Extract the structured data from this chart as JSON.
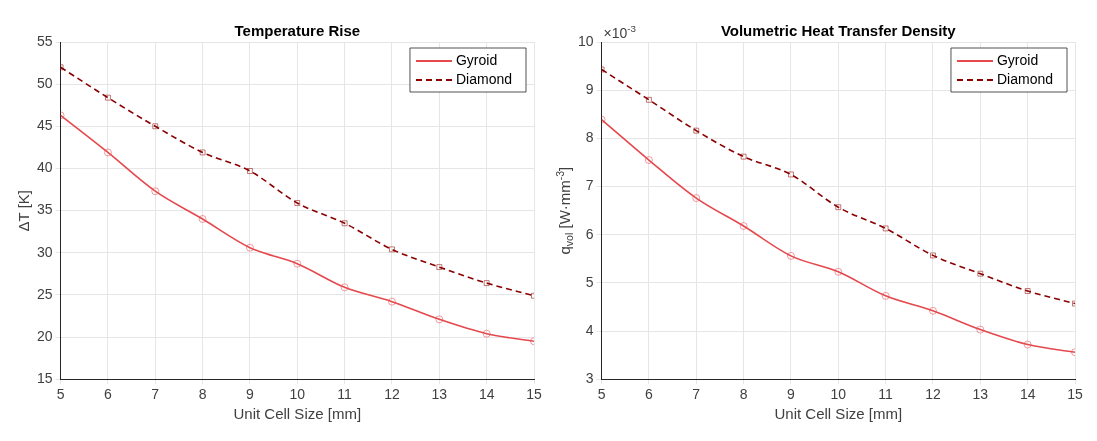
{
  "chart_data": [
    {
      "type": "line",
      "title": "Temperature Rise",
      "xlabel": "Unit Cell Size [mm]",
      "ylabel": "ΔT [K]",
      "x": [
        5,
        6,
        7,
        8,
        9,
        10,
        11,
        12,
        13,
        14,
        15
      ],
      "series": [
        {
          "name": "Gyroid",
          "color": "#e5484d",
          "marker": "circle",
          "line_style": "solid",
          "values": [
            46.3,
            41.9,
            37.3,
            34.0,
            30.6,
            28.7,
            25.9,
            24.2,
            22.1,
            20.4,
            19.5
          ]
        },
        {
          "name": "Diamond",
          "color": "#8b0000",
          "marker": "square",
          "line_style": "dashed",
          "values": [
            52.0,
            48.4,
            45.0,
            41.9,
            39.7,
            35.9,
            33.5,
            30.4,
            28.3,
            26.4,
            24.9
          ]
        }
      ],
      "xlim": [
        5,
        15
      ],
      "xticks": [
        5,
        6,
        7,
        8,
        9,
        10,
        11,
        12,
        13,
        14,
        15
      ],
      "ylim": [
        15,
        55
      ],
      "yticks": [
        15,
        20,
        25,
        30,
        35,
        40,
        45,
        50,
        55
      ],
      "grid": true,
      "legend": "top right"
    },
    {
      "type": "line",
      "title": "Volumetric Heat Transfer Density",
      "xlabel": "Unit Cell Size [mm]",
      "ylabel": "q$_{vol}$ [W·mm$^{-3}$]",
      "annotations": [
        "×10$^{-3}$"
      ],
      "x": [
        5,
        6,
        7,
        8,
        9,
        10,
        11,
        12,
        13,
        14,
        15
      ],
      "series": [
        {
          "name": "Gyroid",
          "color": "#e5484d",
          "marker": "circle",
          "line_style": "solid",
          "values": [
            8.39,
            7.55,
            6.76,
            6.18,
            5.56,
            5.23,
            4.73,
            4.42,
            4.03,
            3.72,
            3.56
          ]
        },
        {
          "name": "Diamond",
          "color": "#8b0000",
          "marker": "square",
          "line_style": "dashed",
          "values": [
            9.43,
            8.8,
            8.16,
            7.62,
            7.25,
            6.57,
            6.13,
            5.57,
            5.19,
            4.83,
            4.57
          ]
        }
      ],
      "xlim": [
        5,
        15
      ],
      "xticks": [
        5,
        6,
        7,
        8,
        9,
        10,
        11,
        12,
        13,
        14,
        15
      ],
      "ylim": [
        3,
        10
      ],
      "yticks": [
        3,
        4,
        5,
        6,
        7,
        8,
        9,
        10
      ],
      "grid": true,
      "legend": "top right"
    }
  ]
}
